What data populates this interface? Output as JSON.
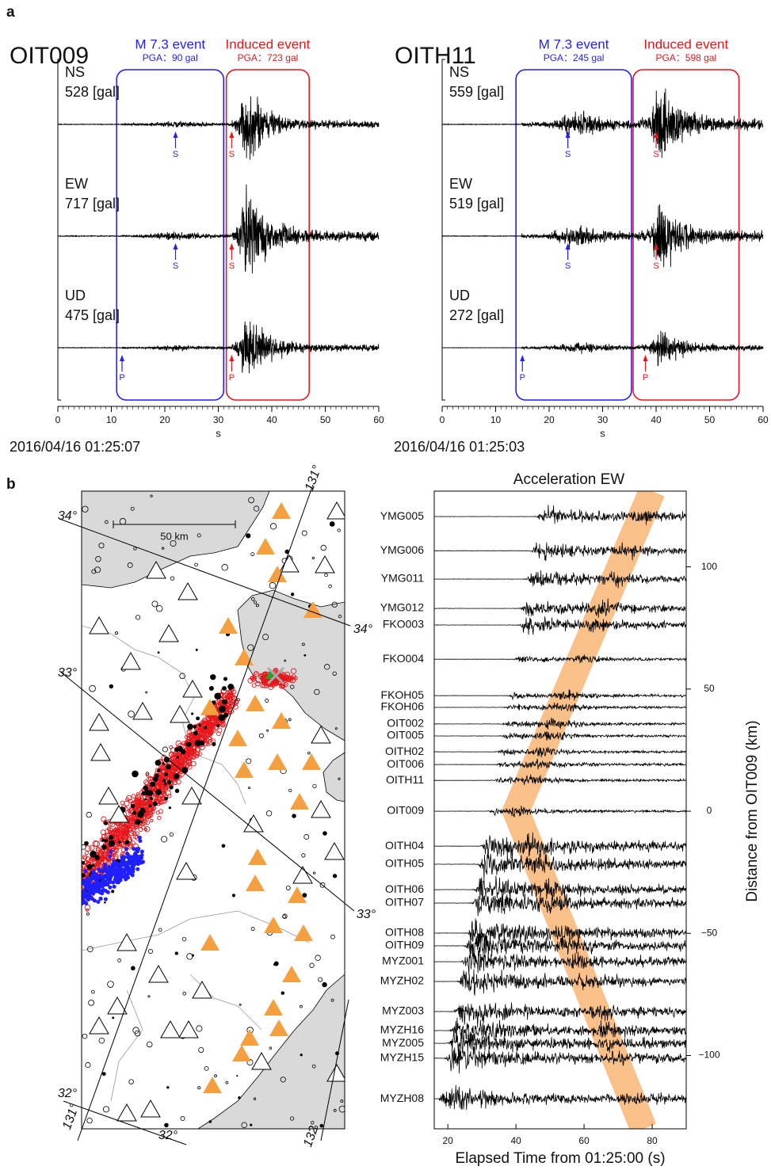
{
  "panel_a": {
    "label": "a",
    "xlabel": "s",
    "xlim": [
      0,
      60
    ],
    "xticks": [
      0,
      10,
      20,
      30,
      40,
      50,
      60
    ],
    "stations": [
      {
        "name": "OIT009",
        "time": "2016/04/16 01:25:07",
        "windows": [
          {
            "name": "M 7.3 event",
            "pga": 90,
            "pga_label": "PGA：90 gal",
            "color": "#1f1fff",
            "start": 11,
            "end": 31
          },
          {
            "name": "Induced event",
            "pga": 723,
            "pga_label": "PGA：723 gal",
            "color": "#e8161b",
            "start": 31.5,
            "end": 47
          }
        ],
        "components": [
          {
            "name": "NS",
            "peak": 528,
            "peak_label": "528 [gal]",
            "arrivals": [
              {
                "phase": "S",
                "time": 22,
                "window": 0
              },
              {
                "phase": "S",
                "time": 32.5,
                "window": 1
              }
            ]
          },
          {
            "name": "EW",
            "peak": 717,
            "peak_label": "717 [gal]",
            "arrivals": [
              {
                "phase": "S",
                "time": 22,
                "window": 0
              },
              {
                "phase": "S",
                "time": 32.5,
                "window": 1
              }
            ]
          },
          {
            "name": "UD",
            "peak": 475,
            "peak_label": "475 [gal]",
            "arrivals": [
              {
                "phase": "P",
                "time": 12,
                "window": 0
              },
              {
                "phase": "P",
                "time": 32.5,
                "window": 1
              }
            ]
          }
        ]
      },
      {
        "name": "OITH11",
        "time": "2016/04/16 01:25:03",
        "windows": [
          {
            "name": "M 7.3 event",
            "pga": 245,
            "pga_label": "PGA：245 gal",
            "color": "#1f1fff",
            "start": 13.8,
            "end": 35.4
          },
          {
            "name": "Induced event",
            "pga": 598,
            "pga_label": "PGA：598 gal",
            "color": "#e8161b",
            "start": 35.7,
            "end": 55.5
          }
        ],
        "components": [
          {
            "name": "NS",
            "peak": 559,
            "peak_label": "559 [gal]",
            "arrivals": [
              {
                "phase": "S",
                "time": 23.5,
                "window": 0
              },
              {
                "phase": "S",
                "time": 40,
                "window": 1
              }
            ]
          },
          {
            "name": "EW",
            "peak": 519,
            "peak_label": "519 [gal]",
            "arrivals": [
              {
                "phase": "S",
                "time": 23.5,
                "window": 0
              },
              {
                "phase": "S",
                "time": 40,
                "window": 1
              }
            ]
          },
          {
            "name": "UD",
            "peak": 272,
            "peak_label": "272 [gal]",
            "arrivals": [
              {
                "phase": "P",
                "time": 15,
                "window": 0
              },
              {
                "phase": "P",
                "time": 38,
                "window": 1
              }
            ]
          }
        ]
      }
    ]
  },
  "panel_b": {
    "label": "b",
    "map": {
      "scale": "50 km",
      "graticule": [
        "34°",
        "34°",
        "33°",
        "33°",
        "32°",
        "32°",
        "131°",
        "131°",
        "132°"
      ]
    },
    "section": {
      "title": "Acceleration EW",
      "xlabel": "Elapsed Time from 01:25:00 (s)",
      "ylabel": "Distance from OIT009 (km)",
      "xlim": [
        16,
        90
      ],
      "xticks": [
        20,
        40,
        60,
        80
      ],
      "ylim": [
        -130,
        131
      ],
      "yticks": [
        100,
        50,
        0,
        {
          "value": -50,
          "label": "−50"
        },
        {
          "value": -100,
          "label": "−100"
        }
      ],
      "band": {
        "color": "#f9c089",
        "times": [
          80,
          40,
          77.5
        ],
        "distances": [
          131,
          0,
          -130
        ]
      },
      "stations": [
        {
          "name": "YMG005",
          "distance": 120.6
        },
        {
          "name": "YMG006",
          "distance": 106.6
        },
        {
          "name": "YMG011",
          "distance": 95
        },
        {
          "name": "YMG012",
          "distance": 83
        },
        {
          "name": "FKO003",
          "distance": 76.2
        },
        {
          "name": "FKO004",
          "distance": 62.2
        },
        {
          "name": "FKOH05",
          "distance": 47.3
        },
        {
          "name": "FKOH06",
          "distance": 42.5
        },
        {
          "name": "OIT002",
          "distance": 35.7
        },
        {
          "name": "OIT005",
          "distance": 30.8
        },
        {
          "name": "OITH02",
          "distance": 24.3
        },
        {
          "name": "OIT006",
          "distance": 19.1
        },
        {
          "name": "OITH11",
          "distance": 12.6
        },
        {
          "name": "OIT009",
          "distance": 0
        },
        {
          "name": "OITH04",
          "distance": -14.3
        },
        {
          "name": "OITH05",
          "distance": -21.7
        },
        {
          "name": "OITH06",
          "distance": -32.1
        },
        {
          "name": "OITH07",
          "distance": -37.6
        },
        {
          "name": "OITH08",
          "distance": -49.9
        },
        {
          "name": "OITH09",
          "distance": -55.1
        },
        {
          "name": "MYZ001",
          "distance": -61.6
        },
        {
          "name": "MYZH02",
          "distance": -69.7
        },
        {
          "name": "MYZ003",
          "distance": -82
        },
        {
          "name": "MYZH16",
          "distance": -89.8
        },
        {
          "name": "MYZ005",
          "distance": -95
        },
        {
          "name": "MYZH15",
          "distance": -101.1
        },
        {
          "name": "MYZH08",
          "distance": -117.7
        }
      ]
    }
  }
}
